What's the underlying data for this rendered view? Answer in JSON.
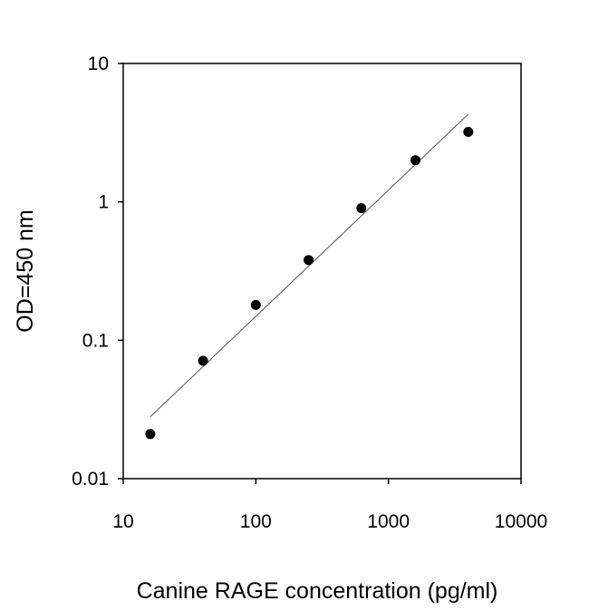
{
  "chart_data": {
    "type": "scatter",
    "title": "",
    "xlabel": "Canine RAGE concentration (pg/ml)",
    "ylabel": "OD=450 nm",
    "x_scale": "log",
    "y_scale": "log",
    "xlim": [
      10,
      10000
    ],
    "ylim": [
      0.01,
      10
    ],
    "x_ticks": [
      10,
      100,
      1000,
      10000
    ],
    "x_tick_labels": [
      "10",
      "100",
      "1000",
      "10000"
    ],
    "y_ticks": [
      0.01,
      0.1,
      1,
      10
    ],
    "y_tick_labels": [
      "0.01",
      "0.1",
      "1",
      "10"
    ],
    "grid": false,
    "series": [
      {
        "x": [
          16,
          40,
          100,
          250,
          625,
          1600,
          4000
        ],
        "y": [
          0.021,
          0.071,
          0.18,
          0.38,
          0.9,
          2.0,
          3.2
        ]
      }
    ],
    "fit_line": {
      "x": [
        16,
        4000
      ],
      "y": [
        0.028,
        4.3
      ]
    },
    "colors": {
      "points": "#000000",
      "fit_line": "#555555",
      "axes": "#000000"
    }
  }
}
